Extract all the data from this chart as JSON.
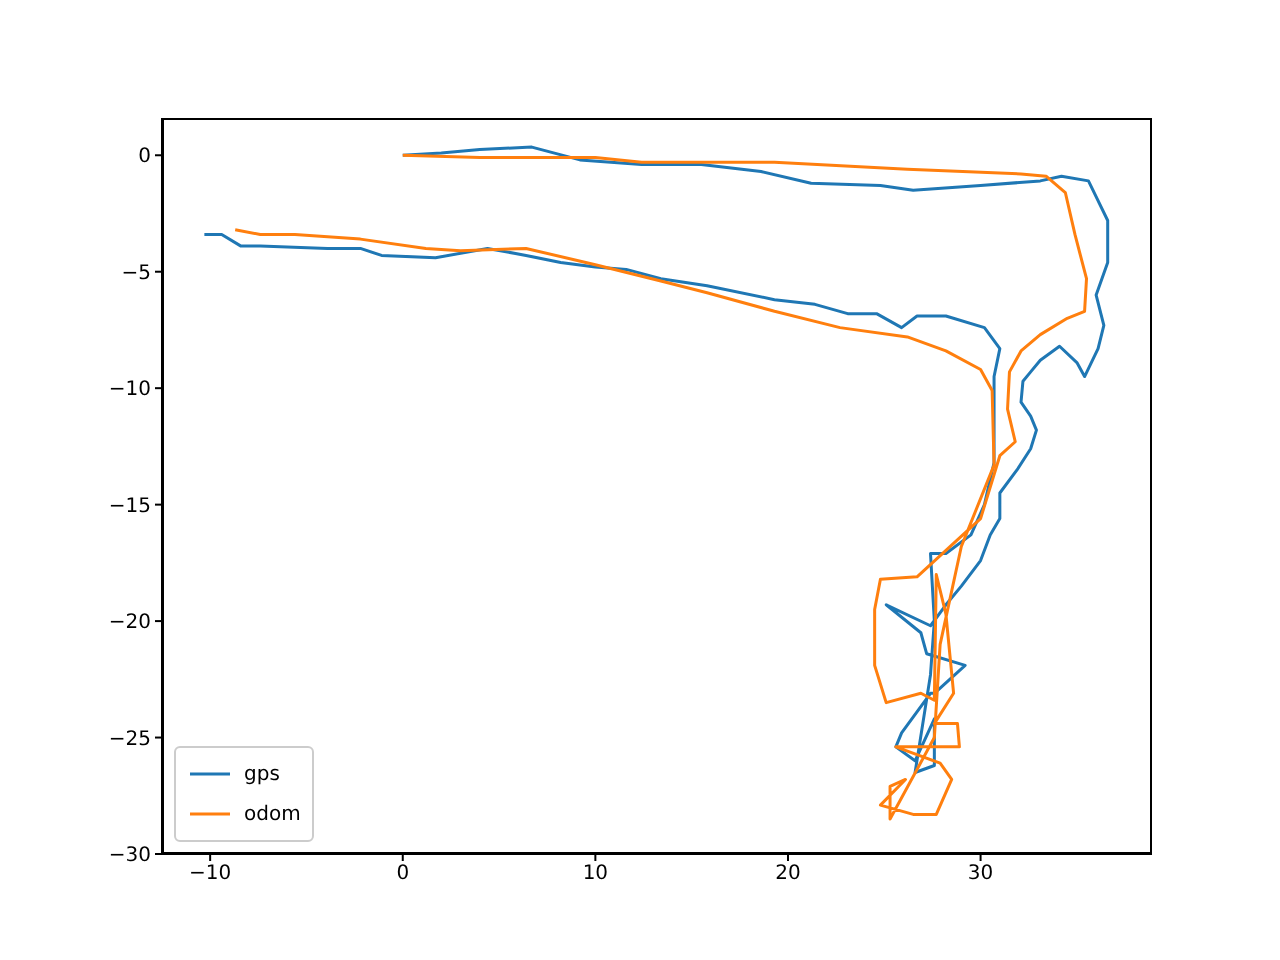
{
  "chart_data": {
    "type": "line",
    "xlim": [
      -12.5,
      38.9
    ],
    "ylim": [
      -30,
      1.6
    ],
    "xticks": [
      -10,
      0,
      10,
      20,
      30
    ],
    "yticks": [
      -30,
      -25,
      -20,
      -15,
      -10,
      -5,
      0
    ],
    "grid": false,
    "legend": "bottom left",
    "line_style": "solid",
    "marker": "none",
    "series": [
      {
        "name": "gps",
        "color": "#1f77b4",
        "x": [
          0,
          2,
          4,
          6.7,
          9.2,
          12.4,
          15.5,
          18.6,
          21.2,
          24.8,
          26.5,
          30,
          33.1,
          34.2,
          35.6,
          36.6,
          36.6,
          36,
          36.4,
          36.1,
          35.4,
          35,
          34.1,
          33.1,
          32.6,
          32.2,
          32.1,
          32.6,
          32.9,
          32.6,
          31.9,
          31,
          31,
          30.5,
          30,
          29,
          28.2,
          27.4,
          25.1,
          26.9,
          27.2,
          29.2,
          27.6,
          27.4,
          25.9,
          25.6,
          26.6,
          27.6,
          27.6,
          26.6,
          27.4,
          27.6,
          27.4,
          28.2,
          29.5,
          30.2,
          30.7,
          30.7,
          31,
          30.2,
          28.2,
          26.7,
          25.9,
          24.6,
          23.1,
          21.4,
          19.3,
          15.8,
          13.4,
          11.6,
          10,
          8.2,
          6.4,
          4.4,
          1.7,
          -1.1,
          -2.2,
          -3.9,
          -7.4,
          -8.4,
          -9.4,
          -10.3
        ],
        "values": [
          0,
          0.1,
          0.25,
          0.35,
          -0.2,
          -0.4,
          -0.4,
          -0.7,
          -1.2,
          -1.3,
          -1.5,
          -1.3,
          -1.1,
          -0.9,
          -1.1,
          -2.8,
          -4.6,
          -6,
          -7.3,
          -8.3,
          -9.5,
          -8.9,
          -8.2,
          -8.8,
          -9.3,
          -9.7,
          -10.6,
          -11.2,
          -11.8,
          -12.6,
          -13.5,
          -14.5,
          -15.6,
          -16.3,
          -17.4,
          -18.5,
          -19.3,
          -20.2,
          -19.3,
          -20.5,
          -21.4,
          -21.9,
          -23.1,
          -23.1,
          -24.8,
          -25.4,
          -26,
          -24.2,
          -26.2,
          -26.5,
          -22.3,
          -20,
          -17.1,
          -17.1,
          -16.3,
          -15,
          -13.2,
          -9.5,
          -8.3,
          -7.4,
          -6.9,
          -6.9,
          -7.4,
          -6.8,
          -6.8,
          -6.4,
          -6.2,
          -5.6,
          -5.3,
          -4.9,
          -4.8,
          -4.6,
          -4.3,
          -4,
          -4.4,
          -4.3,
          -4,
          -4,
          -3.9,
          -3.9,
          -3.4,
          -3.4
        ]
      },
      {
        "name": "odom",
        "color": "#ff7f0e",
        "x": [
          0,
          4,
          10,
          12.4,
          19.3,
          26.2,
          32.1,
          33.4,
          34.4,
          34.9,
          35.5,
          35.4,
          34.5,
          33.1,
          32.1,
          31.5,
          31.4,
          31.8,
          31,
          30,
          26.7,
          24.8,
          24.5,
          24.5,
          25.1,
          26.9,
          27.6,
          27.7,
          28.2,
          28.6,
          27.6,
          28.8,
          28.9,
          25.6,
          27.9,
          28.5,
          27.7,
          26.5,
          24.8,
          26.1,
          25.3,
          25.3,
          27.6,
          27.9,
          29,
          30.7,
          30.6,
          30,
          28.2,
          26.2,
          22.7,
          19.3,
          15.8,
          13.4,
          10,
          6.4,
          3,
          1.2,
          -2.2,
          -5.6,
          -7.4,
          -8.7
        ],
        "values": [
          0,
          -0.1,
          -0.1,
          -0.3,
          -0.3,
          -0.6,
          -0.8,
          -0.9,
          -1.6,
          -3.4,
          -5.3,
          -6.7,
          -7,
          -7.7,
          -8.4,
          -9.3,
          -10.9,
          -12.3,
          -12.9,
          -15.6,
          -18.1,
          -18.2,
          -19.5,
          -21.9,
          -23.5,
          -23.1,
          -23.4,
          -18,
          -19.7,
          -23.1,
          -24.4,
          -24.4,
          -25.4,
          -25.4,
          -26.1,
          -26.8,
          -28.3,
          -28.3,
          -27.9,
          -26.8,
          -27.1,
          -28.5,
          -25,
          -21,
          -16.8,
          -13.3,
          -10.1,
          -9.2,
          -8.4,
          -7.8,
          -7.4,
          -6.7,
          -5.9,
          -5.4,
          -4.7,
          -4,
          -4.1,
          -4,
          -3.6,
          -3.4,
          -3.4,
          -3.2
        ]
      }
    ]
  }
}
